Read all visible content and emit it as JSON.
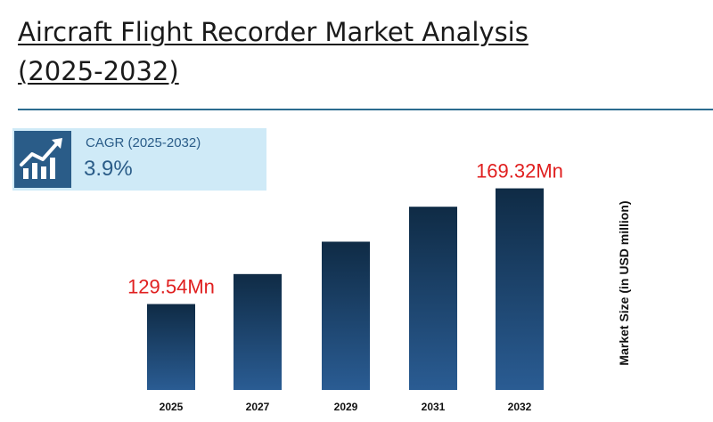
{
  "header": {
    "title_line1": "Aircraft Flight Recorder Market Analysis",
    "title_line2": "(2025-2032)"
  },
  "cagr": {
    "label": "CAGR (2025-2032)",
    "value": "3.9%",
    "icon": "growth-chart-icon"
  },
  "colors": {
    "bar_top": "#0f2b45",
    "bar_bottom": "#2a5c93",
    "value_label": "#e02020",
    "accent": "#2a5c88"
  },
  "chart_data": {
    "type": "bar",
    "title": "Aircraft Flight Recorder Market Analysis (2025-2032)",
    "xlabel": "",
    "ylabel": "Market Size (in USD million)",
    "categories": [
      "2025",
      "2027",
      "2029",
      "2031",
      "2032"
    ],
    "values": [
      129.54,
      139.85,
      150.98,
      163.0,
      169.32
    ],
    "value_labels": [
      "129.54Mn",
      "",
      "",
      "",
      "169.32Mn"
    ],
    "ylim": [
      100,
      175
    ],
    "grid": false,
    "legend": "none"
  }
}
